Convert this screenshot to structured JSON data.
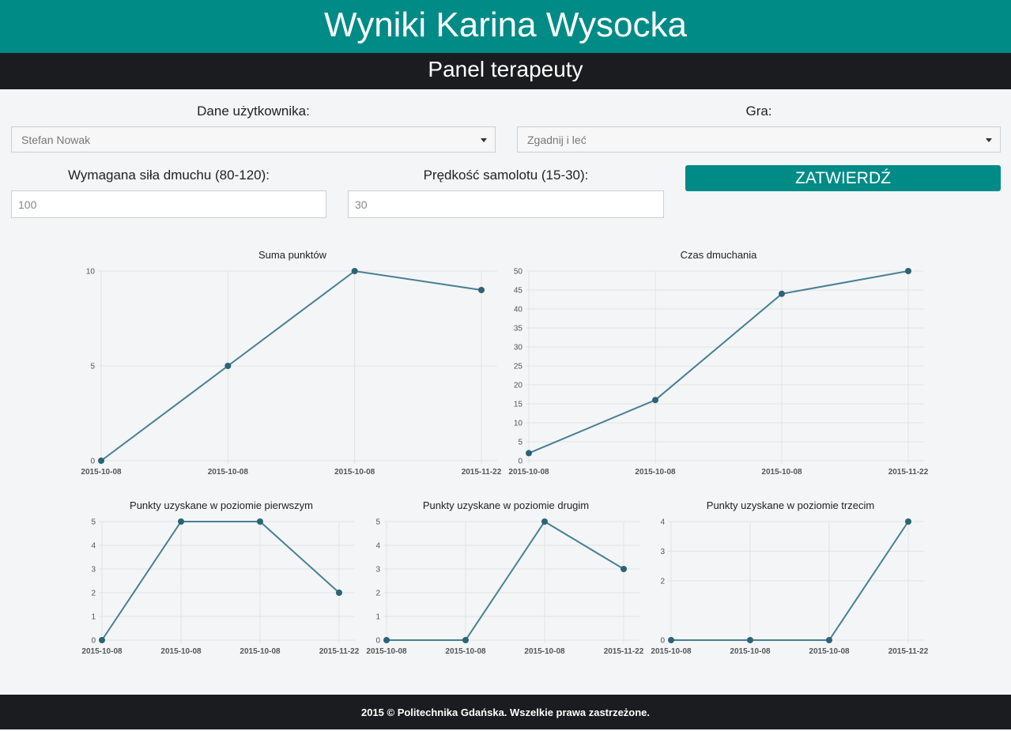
{
  "header": {
    "title": "Wyniki Karina Wysocka",
    "subtitle": "Panel terapeuty"
  },
  "form": {
    "user_label": "Dane użytkownika:",
    "user_value": "Stefan Nowak",
    "game_label": "Gra:",
    "game_value": "Zgadnij i leć",
    "force_label": "Wymagana siła dmuchu (80-120):",
    "force_value": "100",
    "speed_label": "Prędkość samolotu (15-30):",
    "speed_value": "30",
    "submit_label": "ZATWIERDŹ"
  },
  "colors": {
    "accent": "#008b87",
    "dark": "#1b1c1f",
    "line": "#467f94",
    "point": "#2b6377"
  },
  "chart_data": [
    {
      "type": "line",
      "title": "Suma punktów",
      "categories": [
        "2015-10-08",
        "2015-10-08",
        "2015-10-08",
        "2015-11-22"
      ],
      "values": [
        0,
        5,
        10,
        9
      ],
      "ylim": [
        0,
        10
      ],
      "yticks": [
        0,
        5,
        10
      ],
      "grid": true
    },
    {
      "type": "line",
      "title": "Czas dmuchania",
      "categories": [
        "2015-10-08",
        "2015-10-08",
        "2015-10-08",
        "2015-11-22"
      ],
      "values": [
        2,
        16,
        44,
        50
      ],
      "ylim": [
        0,
        50
      ],
      "yticks": [
        0,
        5,
        10,
        15,
        20,
        25,
        30,
        35,
        40,
        45,
        50
      ],
      "grid": true
    },
    {
      "type": "line",
      "title": "Punkty uzyskane w poziomie pierwszym",
      "categories": [
        "2015-10-08",
        "2015-10-08",
        "2015-10-08",
        "2015-11-22"
      ],
      "values": [
        0,
        5,
        5,
        2
      ],
      "ylim": [
        0,
        5
      ],
      "yticks": [
        0,
        1,
        2,
        3,
        4,
        5
      ],
      "grid": true
    },
    {
      "type": "line",
      "title": "Punkty uzyskane w poziomie drugim",
      "categories": [
        "2015-10-08",
        "2015-10-08",
        "2015-10-08",
        "2015-11-22"
      ],
      "values": [
        0,
        0,
        5,
        3
      ],
      "ylim": [
        0,
        5
      ],
      "yticks": [
        0,
        1,
        2,
        3,
        4,
        5
      ],
      "grid": true
    },
    {
      "type": "line",
      "title": "Punkty uzyskane w poziomie trzecim",
      "categories": [
        "2015-10-08",
        "2015-10-08",
        "2015-10-08",
        "2015-11-22"
      ],
      "values": [
        0,
        0,
        0,
        4
      ],
      "ylim": [
        0,
        4
      ],
      "yticks": [
        0,
        2,
        3,
        4
      ],
      "grid": true
    }
  ],
  "footer": {
    "text": "2015 © Politechnika Gdańska. Wszelkie prawa zastrzeżone."
  }
}
